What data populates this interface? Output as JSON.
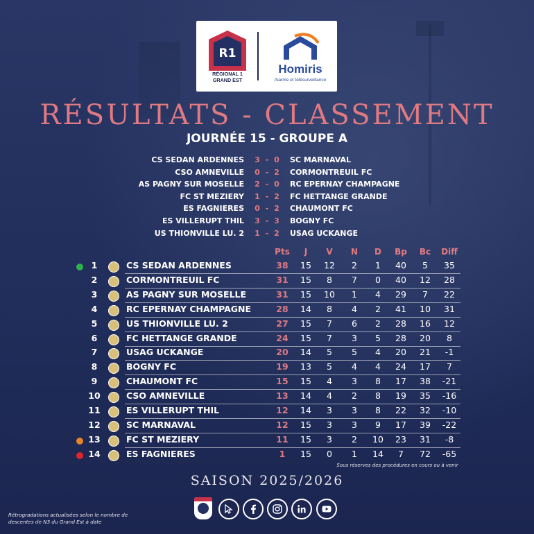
{
  "logo": {
    "r1_text": "R1",
    "r1_caption_line1": "RÉGIONAL 1",
    "r1_caption_line2": "GRAND EST",
    "sponsor_name": "Homiris",
    "sponsor_tagline": "Alarme et télésurveillance"
  },
  "title": "RÉSULTATS - CLASSEMENT",
  "subtitle": "JOURNÉE 15 - GROUPE A",
  "results": [
    {
      "home": "CS SEDAN ARDENNES",
      "hs": "3",
      "as": "0",
      "away": "SC MARNAVAL"
    },
    {
      "home": "CSO AMNEVILLE",
      "hs": "0",
      "as": "2",
      "away": "CORMONTREUIL FC"
    },
    {
      "home": "AS PAGNY SUR MOSELLE",
      "hs": "2",
      "as": "0",
      "away": "RC EPERNAY CHAMPAGNE"
    },
    {
      "home": "FC ST MEZIERY",
      "hs": "1",
      "as": "2",
      "away": "FC HETTANGE GRANDE"
    },
    {
      "home": "ES FAGNIERES",
      "hs": "0",
      "as": "2",
      "away": "CHAUMONT FC"
    },
    {
      "home": "ES VILLERUPT THIL",
      "hs": "3",
      "as": "3",
      "away": "BOGNY FC"
    },
    {
      "home": "US THIONVILLE LU. 2",
      "hs": "1",
      "as": "2",
      "away": "USAG UCKANGE"
    }
  ],
  "score_dash": "-",
  "table_headers": {
    "pts": "Pts",
    "j": "J",
    "v": "V",
    "n": "N",
    "d": "D",
    "bp": "Bp",
    "bc": "Bc",
    "diff": "Diff"
  },
  "standings": [
    {
      "rank": "1",
      "team": "CS SEDAN ARDENNES",
      "pts": "38",
      "j": "15",
      "v": "12",
      "n": "2",
      "d": "1",
      "bp": "40",
      "bc": "5",
      "diff": "35",
      "marker": "#2db34a"
    },
    {
      "rank": "2",
      "team": "CORMONTREUIL FC",
      "pts": "31",
      "j": "15",
      "v": "8",
      "n": "7",
      "d": "0",
      "bp": "40",
      "bc": "12",
      "diff": "28"
    },
    {
      "rank": "3",
      "team": "AS PAGNY SUR MOSELLE",
      "pts": "31",
      "j": "15",
      "v": "10",
      "n": "1",
      "d": "4",
      "bp": "29",
      "bc": "7",
      "diff": "22"
    },
    {
      "rank": "4",
      "team": "RC EPERNAY CHAMPAGNE",
      "pts": "28",
      "j": "14",
      "v": "8",
      "n": "4",
      "d": "2",
      "bp": "41",
      "bc": "10",
      "diff": "31"
    },
    {
      "rank": "5",
      "team": "US THIONVILLE LU. 2",
      "pts": "27",
      "j": "15",
      "v": "7",
      "n": "6",
      "d": "2",
      "bp": "28",
      "bc": "16",
      "diff": "12"
    },
    {
      "rank": "6",
      "team": "FC HETTANGE GRANDE",
      "pts": "24",
      "j": "15",
      "v": "7",
      "n": "3",
      "d": "5",
      "bp": "28",
      "bc": "20",
      "diff": "8"
    },
    {
      "rank": "7",
      "team": "USAG UCKANGE",
      "pts": "20",
      "j": "14",
      "v": "5",
      "n": "5",
      "d": "4",
      "bp": "20",
      "bc": "21",
      "diff": "-1"
    },
    {
      "rank": "8",
      "team": "BOGNY FC",
      "pts": "19",
      "j": "13",
      "v": "5",
      "n": "4",
      "d": "4",
      "bp": "24",
      "bc": "17",
      "diff": "7"
    },
    {
      "rank": "9",
      "team": "CHAUMONT FC",
      "pts": "15",
      "j": "15",
      "v": "4",
      "n": "3",
      "d": "8",
      "bp": "17",
      "bc": "38",
      "diff": "-21"
    },
    {
      "rank": "10",
      "team": "CSO AMNEVILLE",
      "pts": "13",
      "j": "14",
      "v": "4",
      "n": "2",
      "d": "8",
      "bp": "19",
      "bc": "35",
      "diff": "-16"
    },
    {
      "rank": "11",
      "team": "ES VILLERUPT THIL",
      "pts": "12",
      "j": "14",
      "v": "3",
      "n": "3",
      "d": "8",
      "bp": "22",
      "bc": "32",
      "diff": "-10"
    },
    {
      "rank": "12",
      "team": "SC MARNAVAL",
      "pts": "12",
      "j": "15",
      "v": "3",
      "n": "3",
      "d": "9",
      "bp": "17",
      "bc": "39",
      "diff": "-22"
    },
    {
      "rank": "13",
      "team": "FC ST MEZIERY",
      "pts": "11",
      "j": "15",
      "v": "3",
      "n": "2",
      "d": "10",
      "bp": "23",
      "bc": "31",
      "diff": "-8",
      "marker": "#e8832a"
    },
    {
      "rank": "14",
      "team": "ES FAGNIERES",
      "pts": "1",
      "j": "15",
      "v": "0",
      "n": "1",
      "d": "14",
      "bp": "7",
      "bc": "72",
      "diff": "-65",
      "marker": "#e0242c"
    }
  ],
  "reserve_note": "Sous réserves des procédures en cours ou à venir",
  "season": "SAISON 2025/2026",
  "footnote": "Rétrogradations actualisées selon le nombre de descentes de N3 du Grand Est à date",
  "social_icons": [
    "cursor-icon",
    "facebook-icon",
    "instagram-icon",
    "linkedin-icon",
    "youtube-icon"
  ],
  "colors": {
    "accent": "#e07a82",
    "background": "#1f2c5a",
    "r1_red": "#c7314a",
    "homiris_blue": "#2a4a9c",
    "homiris_orange": "#ef7d22"
  }
}
